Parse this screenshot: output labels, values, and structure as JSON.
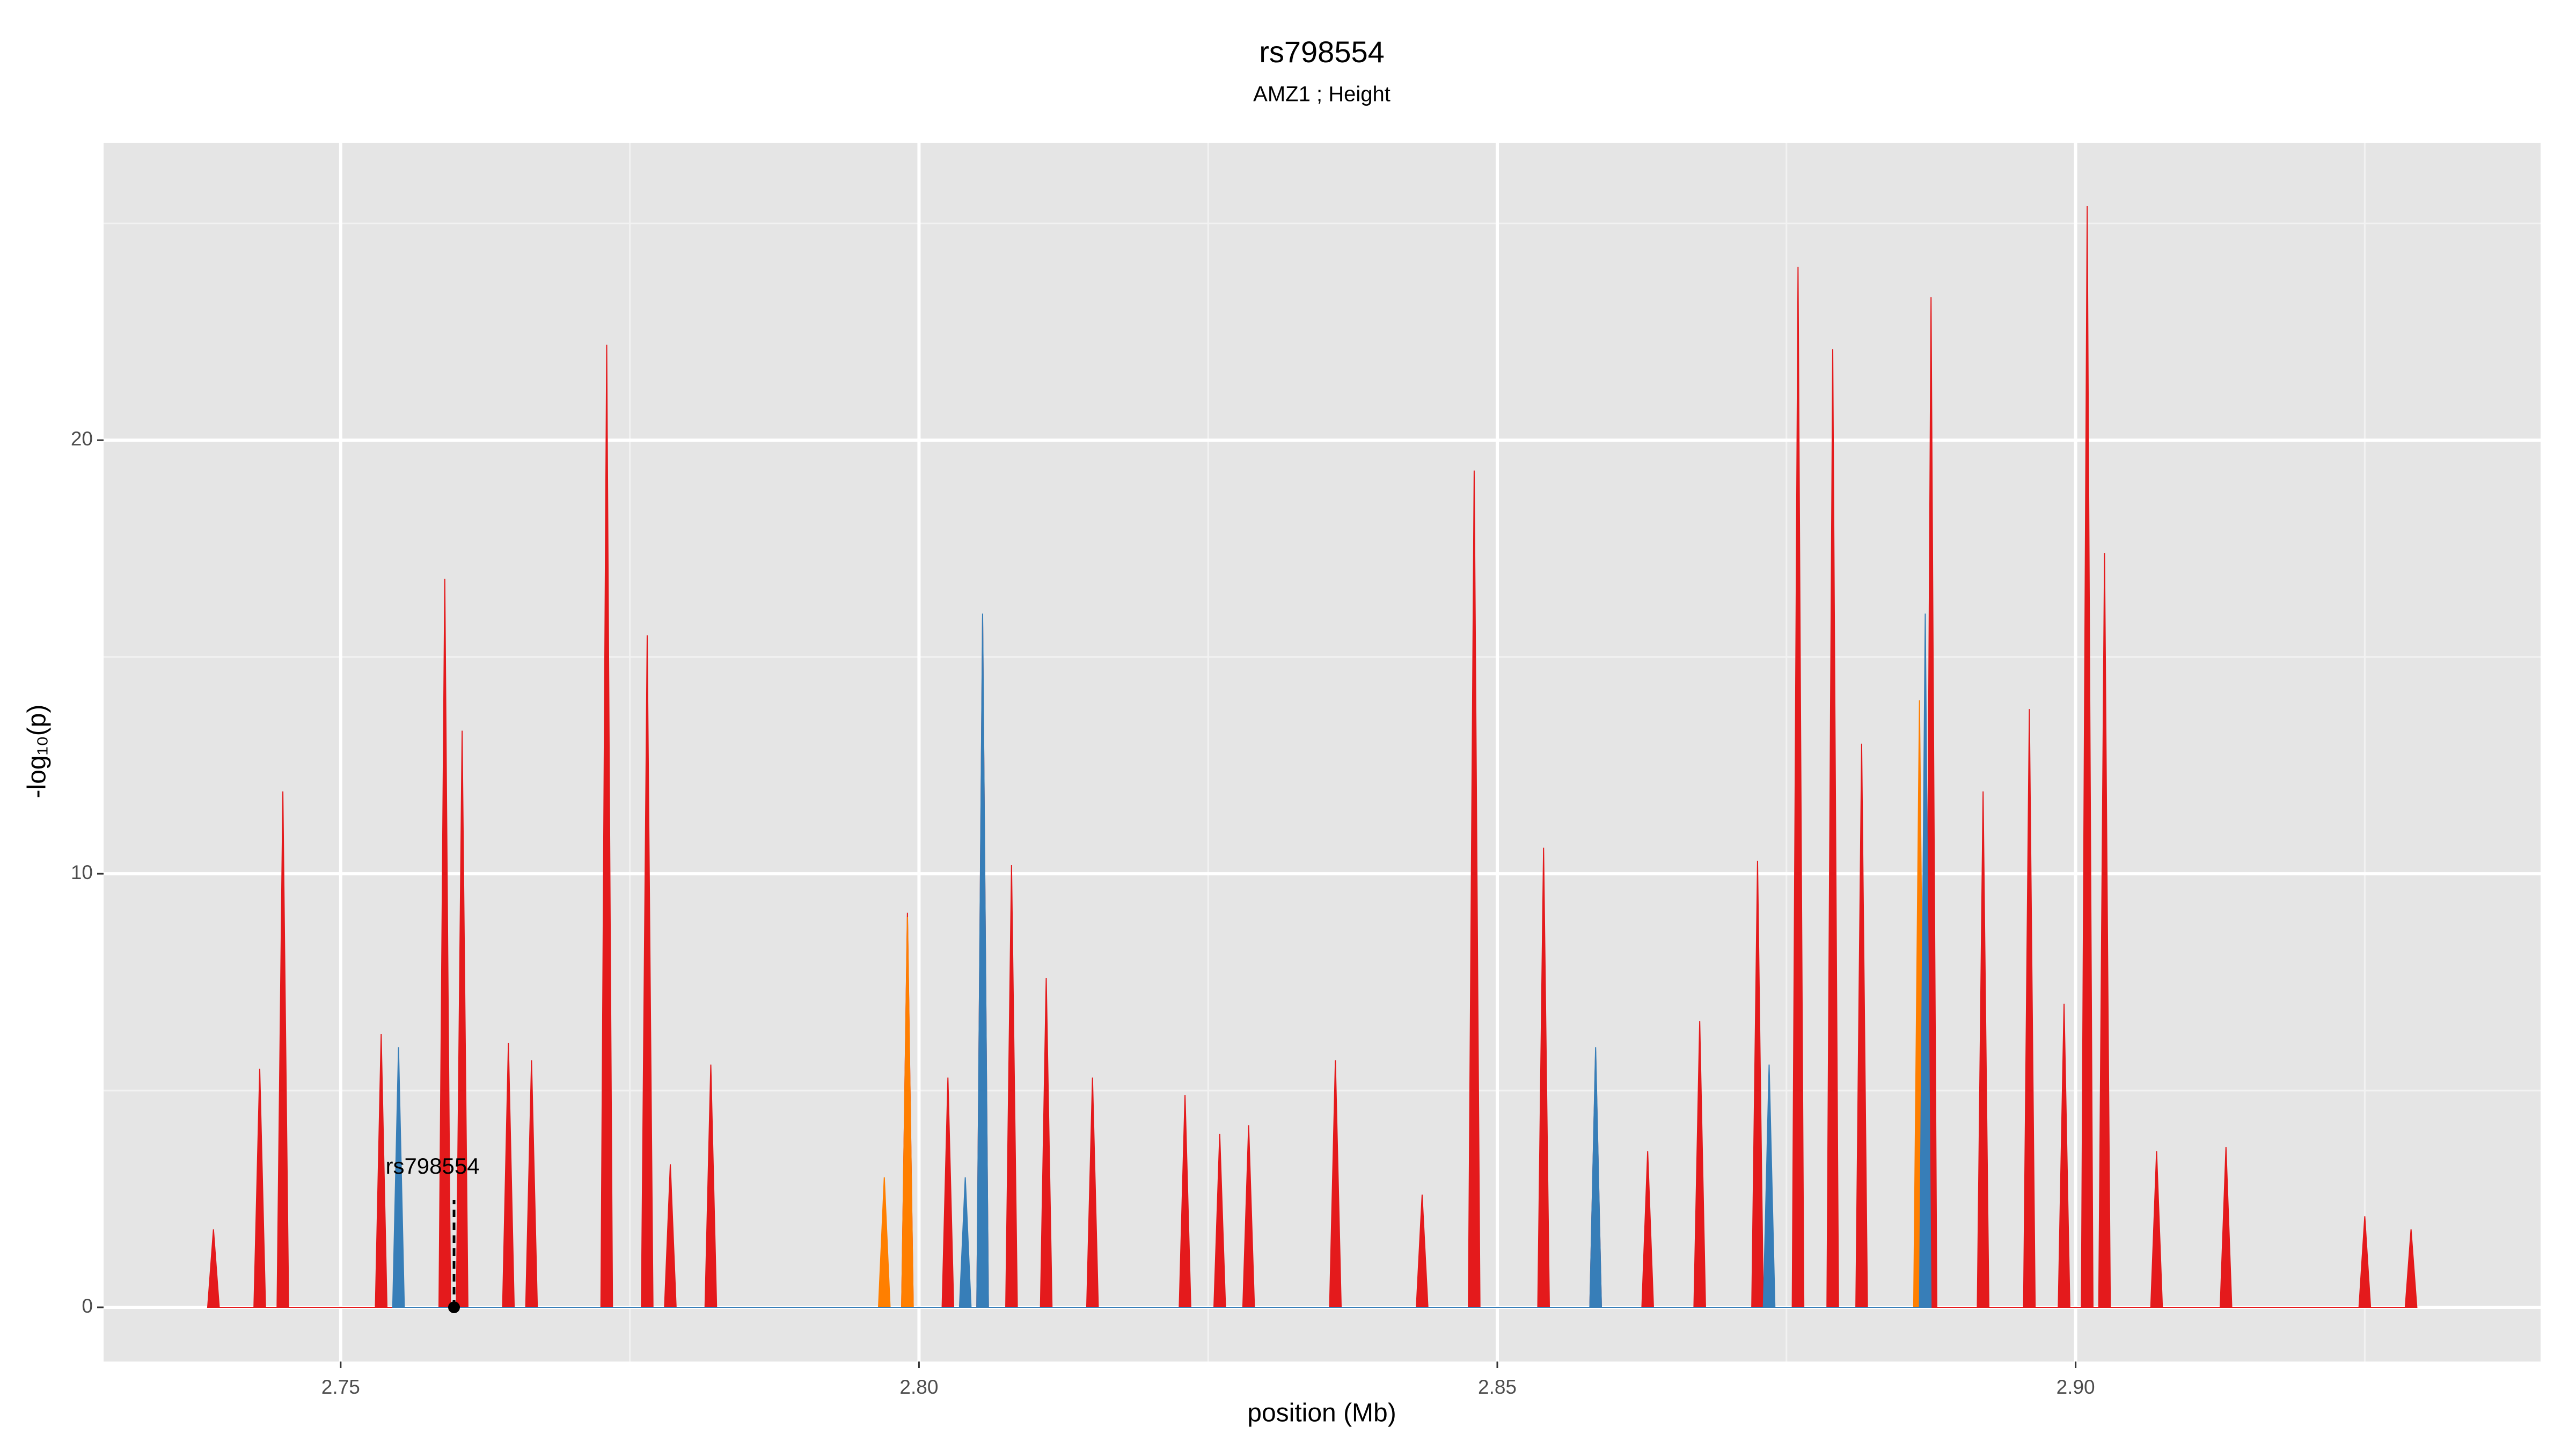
{
  "chart_data": {
    "type": "area",
    "title": "rs798554",
    "subtitle": "AMZ1 ; Height",
    "x_label": "position (Mb)",
    "y_label": "-log₁₀(p)",
    "xlim": [
      2.7295,
      2.9402
    ],
    "ylim": [
      -1.25,
      26.86
    ],
    "xticks": [
      2.75,
      {
        "value": 2.8,
        "label": "2.80"
      },
      2.85,
      {
        "value": 2.9,
        "label": "2.90"
      }
    ],
    "yticks": [
      0,
      10,
      20
    ],
    "xminor": [
      2.775,
      2.825,
      2.875,
      2.925
    ],
    "yminor": [
      5,
      15,
      25
    ],
    "grid": true,
    "series": [
      {
        "color": "#e41a1c",
        "x": [
          2.7385,
          2.739,
          2.7395,
          2.7425,
          2.743,
          2.7435,
          2.7445,
          2.745,
          2.7455,
          2.753,
          2.7535,
          2.754,
          2.7585,
          2.759,
          2.7595,
          2.76,
          2.7605,
          2.761,
          2.764,
          2.7645,
          2.765,
          2.766,
          2.7665,
          2.767,
          2.7725,
          2.773,
          2.7735,
          2.776,
          2.7765,
          2.777,
          2.778,
          2.7785,
          2.779,
          2.7815,
          2.782,
          2.7825,
          2.7985,
          2.799,
          2.7995,
          2.802,
          2.8025,
          2.803,
          2.805,
          2.8055,
          2.806,
          2.8075,
          2.808,
          2.8085,
          2.8105,
          2.811,
          2.8115,
          2.8145,
          2.815,
          2.8155,
          2.8225,
          2.823,
          2.8235,
          2.8255,
          2.826,
          2.8265,
          2.828,
          2.8285,
          2.829,
          2.8355,
          2.836,
          2.8365,
          2.843,
          2.8435,
          2.844,
          2.8475,
          2.848,
          2.8485,
          2.8535,
          2.854,
          2.8545,
          2.858,
          2.8585,
          2.859,
          2.8625,
          2.863,
          2.8635,
          2.867,
          2.8675,
          2.868,
          2.872,
          2.8725,
          2.873,
          2.8755,
          2.876,
          2.8765,
          2.8785,
          2.879,
          2.8795,
          2.881,
          2.8815,
          2.882,
          2.887,
          2.8875,
          2.888,
          2.8915,
          2.892,
          2.8925,
          2.8955,
          2.896,
          2.8965,
          2.8985,
          2.899,
          2.8995,
          2.9005,
          2.901,
          2.9015,
          2.902,
          2.9025,
          2.903,
          2.9065,
          2.907,
          2.9075,
          2.9125,
          2.913,
          2.9135,
          2.9245,
          2.925,
          2.9255,
          2.9285,
          2.929,
          2.9295
        ],
        "values": [
          0,
          1.8,
          0,
          0,
          5.5,
          0,
          0,
          11.9,
          0,
          0,
          6.3,
          0,
          0,
          16.8,
          0,
          0,
          13.3,
          0,
          0,
          6.1,
          0,
          0,
          5.7,
          0,
          0,
          22.2,
          0,
          0,
          15.5,
          0,
          0,
          3.3,
          0,
          0,
          5.6,
          0,
          0,
          9.1,
          0,
          0,
          5.3,
          0,
          0,
          15.9,
          0,
          0,
          10.2,
          0,
          0,
          7.6,
          0,
          0,
          5.3,
          0,
          0,
          4.9,
          0,
          0,
          4.0,
          0,
          0,
          4.2,
          0,
          0,
          5.7,
          0,
          0,
          2.6,
          0,
          0,
          19.3,
          0,
          0,
          10.6,
          0,
          0,
          5.9,
          0,
          0,
          3.6,
          0,
          0,
          6.6,
          0,
          0,
          10.3,
          0,
          0,
          24.0,
          0,
          0,
          22.1,
          0,
          0,
          13.0,
          0,
          0,
          23.3,
          0,
          0,
          11.9,
          0,
          0,
          13.8,
          0,
          0,
          7.0,
          0,
          0,
          25.4,
          0,
          0,
          17.4,
          0,
          0,
          3.6,
          0,
          0,
          3.7,
          0,
          0,
          2.1,
          0,
          0,
          1.8,
          0
        ]
      },
      {
        "color": "#ff7f00",
        "x": [
          2.7965,
          2.797,
          2.7975,
          2.7985,
          2.799,
          2.7995,
          2.886,
          2.8865,
          2.887
        ],
        "values": [
          0,
          3.0,
          0,
          0,
          9.0,
          0,
          0,
          14.0,
          0
        ]
      },
      {
        "color": "#377eb8",
        "x": [
          2.7545,
          2.755,
          2.7555,
          2.8035,
          2.804,
          2.8045,
          2.805,
          2.8055,
          2.806,
          2.858,
          2.8585,
          2.859,
          2.873,
          2.8735,
          2.874,
          2.8865,
          2.887,
          2.8875
        ],
        "values": [
          0,
          6.0,
          0,
          0,
          3.0,
          0,
          0,
          16.0,
          0,
          0,
          6.0,
          0,
          0,
          5.6,
          0,
          0,
          16.0,
          0
        ]
      }
    ],
    "annotation": {
      "text": "rs798554",
      "x": 2.7598,
      "y": 0
    }
  }
}
